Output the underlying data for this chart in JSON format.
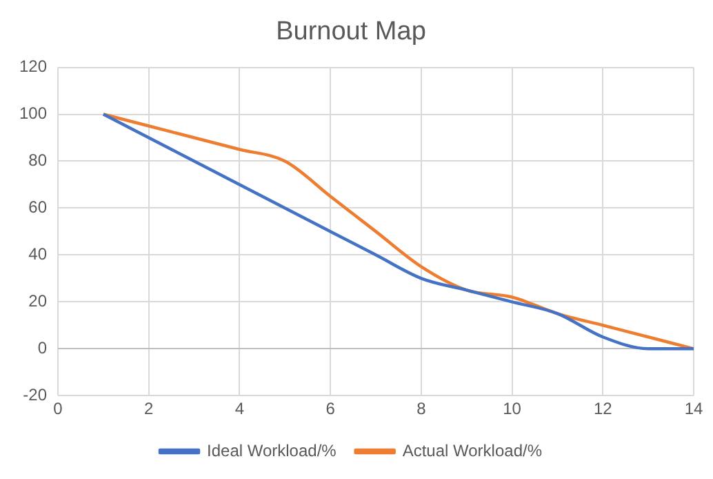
{
  "chart_data": {
    "type": "line",
    "title": "Burnout Map",
    "x": [
      1,
      2,
      3,
      4,
      5,
      6,
      7,
      8,
      9,
      10,
      11,
      12,
      13,
      14
    ],
    "series": [
      {
        "name": "Ideal Workload/%",
        "color": "#4472c4",
        "values": [
          100,
          90,
          80,
          70,
          60,
          50,
          40,
          30,
          25,
          20,
          15,
          5,
          0,
          0
        ]
      },
      {
        "name": "Actual Workload/%",
        "color": "#ed7d31",
        "values": [
          100,
          95,
          90,
          85,
          80,
          65,
          50,
          35,
          25,
          22,
          15,
          10,
          5,
          0
        ]
      }
    ],
    "xlim": [
      0,
      14
    ],
    "xticks": [
      0,
      2,
      4,
      6,
      8,
      10,
      12,
      14
    ],
    "ylim": [
      -20,
      120
    ],
    "yticks": [
      -20,
      0,
      20,
      40,
      60,
      80,
      100,
      120
    ],
    "grid": true,
    "legend": "bottom",
    "marker": "none",
    "line_style": "solid"
  }
}
